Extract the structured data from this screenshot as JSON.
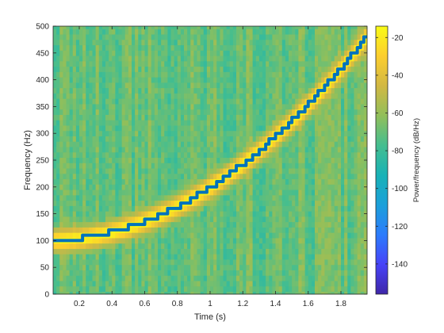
{
  "chart_data": {
    "type": "heatmap",
    "title": "",
    "xlabel": "Time (s)",
    "ylabel": "Frequency (Hz)",
    "colorbar_label": "Power/frequency (dB/Hz)",
    "xlim": [
      0.04,
      1.96
    ],
    "ylim": [
      0,
      500
    ],
    "clim": [
      -156,
      -14
    ],
    "x_ticks": [
      0.2,
      0.4,
      0.6,
      0.8,
      1,
      1.2,
      1.4,
      1.6,
      1.8
    ],
    "x_tick_labels": [
      "0.2",
      "0.4",
      "0.6",
      "0.8",
      "1",
      "1.2",
      "1.4",
      "1.6",
      "1.8"
    ],
    "y_ticks": [
      0,
      50,
      100,
      150,
      200,
      250,
      300,
      350,
      400,
      450,
      500
    ],
    "y_tick_labels": [
      "0",
      "50",
      "100",
      "150",
      "200",
      "250",
      "300",
      "350",
      "400",
      "450",
      "500"
    ],
    "colorbar_ticks": [
      -20,
      -40,
      -60,
      -80,
      -100,
      -120,
      -140
    ],
    "colorbar_tick_labels": [
      "-20",
      "-40",
      "-60",
      "-80",
      "-100",
      "-120",
      "-140"
    ],
    "colormap": "parula",
    "colormap_stops": [
      "#3e26a8",
      "#4743f8",
      "#2c7cfc",
      "#1ba0da",
      "#18b2b6",
      "#45be8f",
      "#92bf5a",
      "#d2b843",
      "#fcce2e",
      "#f9fb15"
    ],
    "time_step_s": 0.02,
    "freq_bin_hz": 10,
    "ridge": {
      "description_units": "instantaneous frequency in Hz vs time in s, quadratic chirp",
      "f0_hz": 100,
      "t1_s": 1.96,
      "f1_hz": 480,
      "peak_db": -15,
      "floor_db": -70,
      "ridge_color": "#0072bd"
    }
  }
}
